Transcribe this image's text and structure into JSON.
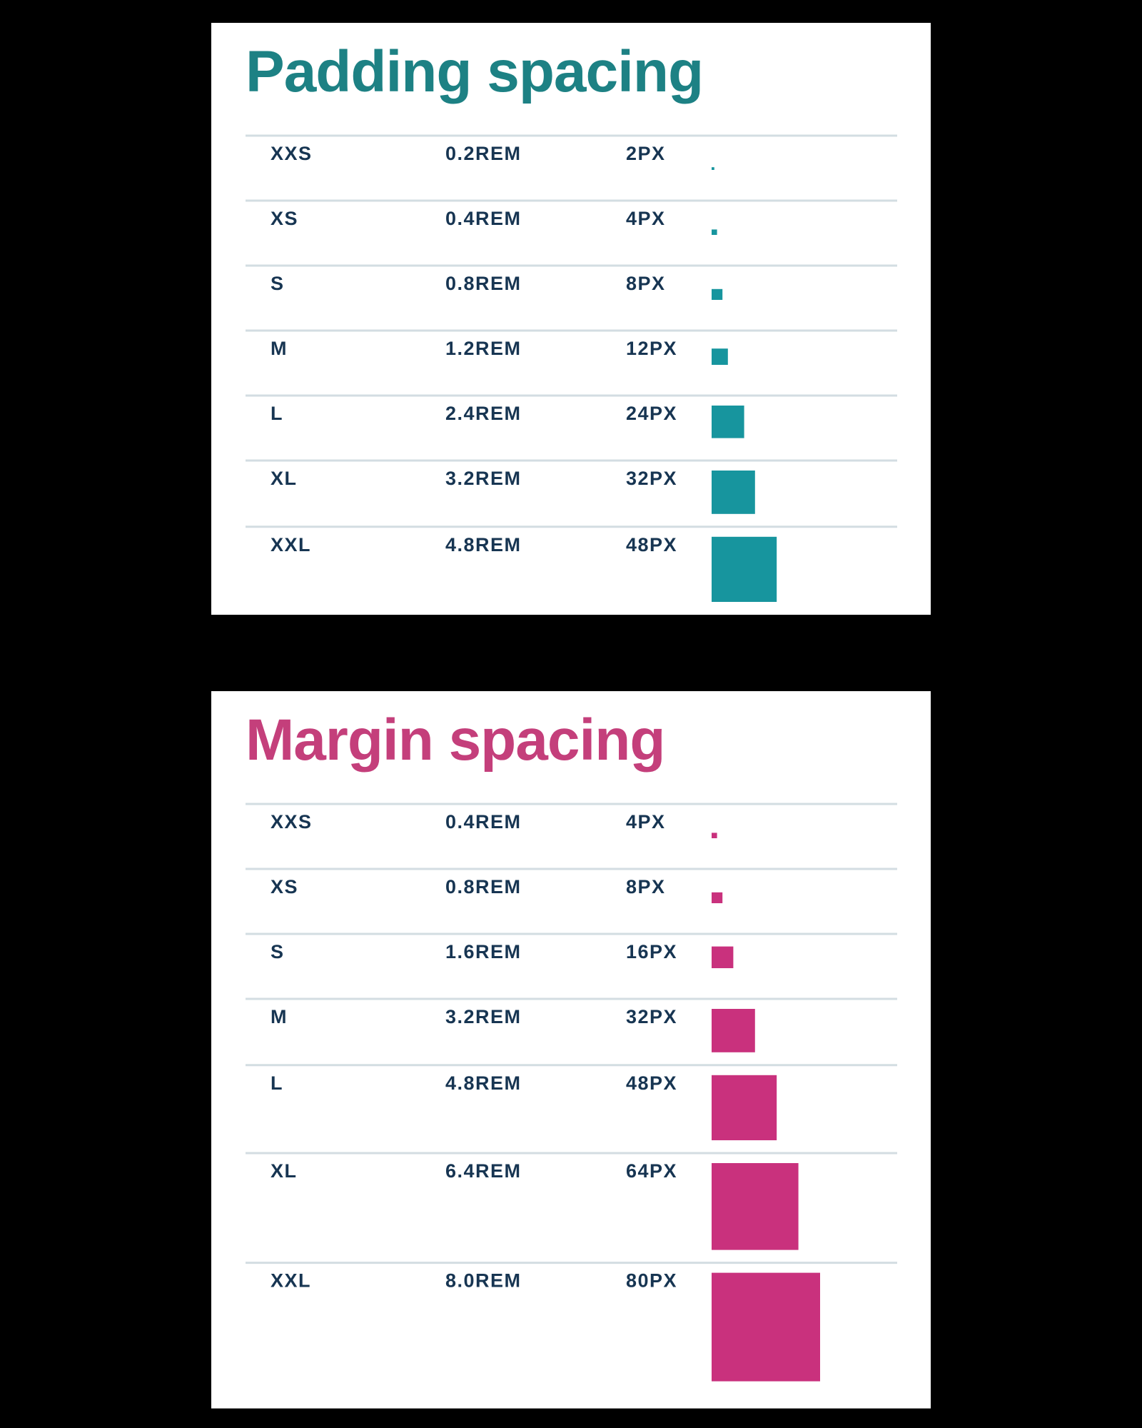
{
  "tables": [
    {
      "title": "Padding spacing",
      "title_color": "#1d8184",
      "color": "#17959e",
      "rows": [
        {
          "size": "XXS",
          "rem": "0.2REM",
          "px": {
            "value": 2,
            "label": "2PX"
          }
        },
        {
          "size": "XS",
          "rem": "0.4REM",
          "px": {
            "value": 4,
            "label": "4PX"
          }
        },
        {
          "size": "S",
          "rem": "0.8REM",
          "px": {
            "value": 8,
            "label": "8PX"
          }
        },
        {
          "size": "M",
          "rem": "1.2REM",
          "px": {
            "value": 12,
            "label": "12PX"
          }
        },
        {
          "size": "L",
          "rem": "2.4REM",
          "px": {
            "value": 24,
            "label": "24PX"
          }
        },
        {
          "size": "XL",
          "rem": "3.2REM",
          "px": {
            "value": 32,
            "label": "32PX"
          }
        },
        {
          "size": "XXL",
          "rem": "4.8REM",
          "px": {
            "value": 48,
            "label": "48PX"
          }
        }
      ]
    },
    {
      "title": "Margin spacing",
      "title_color": "#c43f7b",
      "color": "#c9317d",
      "rows": [
        {
          "size": "XXS",
          "rem": "0.4REM",
          "px": {
            "value": 4,
            "label": "4PX"
          }
        },
        {
          "size": "XS",
          "rem": "0.8REM",
          "px": {
            "value": 8,
            "label": "8PX"
          }
        },
        {
          "size": "S",
          "rem": "1.6REM",
          "px": {
            "value": 16,
            "label": "16PX"
          }
        },
        {
          "size": "M",
          "rem": "3.2REM",
          "px": {
            "value": 32,
            "label": "32PX"
          }
        },
        {
          "size": "L",
          "rem": "4.8REM",
          "px": {
            "value": 48,
            "label": "48PX"
          }
        },
        {
          "size": "XL",
          "rem": "6.4REM",
          "px": {
            "value": 64,
            "label": "64PX"
          }
        },
        {
          "size": "XXL",
          "rem": "8.0REM",
          "px": {
            "value": 80,
            "label": "80PX"
          }
        }
      ]
    }
  ]
}
